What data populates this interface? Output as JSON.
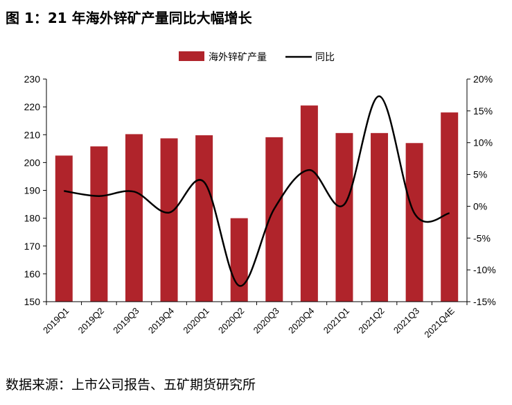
{
  "figure_title": "图 1：21 年海外锌矿产量同比大幅增长",
  "source_note": "数据来源：上市公司报告、五矿期货研究所",
  "colors": {
    "bar": "#b0242b",
    "line": "#000000",
    "axis": "#000000"
  },
  "chart_data": {
    "type": "bar",
    "categories": [
      "2019Q1",
      "2019Q2",
      "2019Q3",
      "2019Q4",
      "2020Q1",
      "2020Q2",
      "2020Q3",
      "2020Q4",
      "2021Q1",
      "2021Q2",
      "2021Q3",
      "2021Q4E"
    ],
    "series": [
      {
        "name": "海外锌矿产量",
        "type": "bar",
        "axis": "left",
        "values": [
          202.5,
          205.8,
          210.2,
          208.7,
          209.8,
          180.0,
          209.1,
          220.5,
          210.6,
          210.6,
          207.0,
          218.0
        ]
      },
      {
        "name": "同比",
        "type": "line",
        "axis": "right",
        "values": [
          2.4,
          1.6,
          2.3,
          -1.0,
          3.8,
          -12.5,
          -0.4,
          5.7,
          0.3,
          17.3,
          -1.1,
          -1.1
        ]
      }
    ],
    "y_left": {
      "min": 150,
      "max": 230,
      "step": 10,
      "ticks": [
        "150",
        "160",
        "170",
        "180",
        "190",
        "200",
        "210",
        "220",
        "230"
      ]
    },
    "y_right": {
      "min": -15,
      "max": 20,
      "step": 5,
      "ticks": [
        "-15%",
        "-10%",
        "-5%",
        "0%",
        "5%",
        "10%",
        "15%",
        "20%"
      ]
    },
    "legend_position": "top-center",
    "grid": false
  }
}
